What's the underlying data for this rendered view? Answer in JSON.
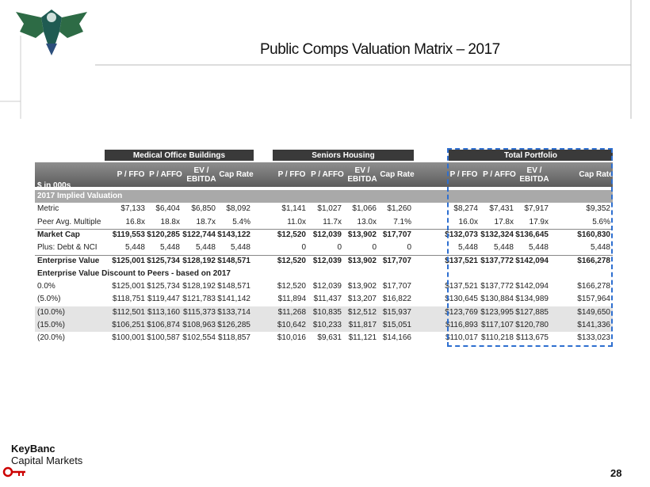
{
  "header": {
    "title": "Public Comps Valuation Matrix – 2017"
  },
  "table": {
    "units": "$ in 000s",
    "groups": [
      "Medical Office Buildings",
      "Seniors Housing",
      "Total Portfolio"
    ],
    "columns": [
      "P / FFO",
      "P / AFFO",
      "EV / EBITDA",
      "Cap Rate"
    ],
    "sections": [
      {
        "title": "2017 Implied Valuation",
        "banner": true,
        "rows": [
          {
            "label": "Metric",
            "cells": [
              "$7,133",
              "$6,404",
              "$6,850",
              "$8,092",
              "$1,141",
              "$1,027",
              "$1,066",
              "$1,260",
              "$8,274",
              "$7,431",
              "$7,917",
              "$9,352"
            ]
          },
          {
            "label": "Peer Avg. Multiple",
            "cells": [
              "16.8x",
              "18.8x",
              "18.7x",
              "5.4%",
              "11.0x",
              "11.7x",
              "13.0x",
              "7.1%",
              "16.0x",
              "17.8x",
              "17.9x",
              "5.6%"
            ]
          },
          {
            "label": "Market Cap",
            "emphasis": true,
            "cells": [
              "$119,553",
              "$120,285",
              "$122,744",
              "$143,122",
              "$12,520",
              "$12,039",
              "$13,902",
              "$17,707",
              "$132,073",
              "$132,324",
              "$136,645",
              "$160,830"
            ]
          },
          {
            "label": "Plus: Debt & NCI",
            "cells": [
              "5,448",
              "5,448",
              "5,448",
              "5,448",
              "0",
              "0",
              "0",
              "0",
              "5,448",
              "5,448",
              "5,448",
              "5,448"
            ]
          },
          {
            "label": "Enterprise Value",
            "emphasis": true,
            "cells": [
              "$125,001",
              "$125,734",
              "$128,192",
              "$148,571",
              "$12,520",
              "$12,039",
              "$13,902",
              "$17,707",
              "$137,521",
              "$137,772",
              "$142,094",
              "$166,278"
            ]
          }
        ]
      },
      {
        "title": "Enterprise Value Discount to Peers - based on 2017",
        "banner": false,
        "rows": [
          {
            "label": "0.0%",
            "cells": [
              "$125,001",
              "$125,734",
              "$128,192",
              "$148,571",
              "$12,520",
              "$12,039",
              "$13,902",
              "$17,707",
              "$137,521",
              "$137,772",
              "$142,094",
              "$166,278"
            ]
          },
          {
            "label": "(5.0%)",
            "cells": [
              "$118,751",
              "$119,447",
              "$121,783",
              "$141,142",
              "$11,894",
              "$11,437",
              "$13,207",
              "$16,822",
              "$130,645",
              "$130,884",
              "$134,989",
              "$157,964"
            ]
          },
          {
            "label": "(10.0%)",
            "shaded": true,
            "cells": [
              "$112,501",
              "$113,160",
              "$115,373",
              "$133,714",
              "$11,268",
              "$10,835",
              "$12,512",
              "$15,937",
              "$123,769",
              "$123,995",
              "$127,885",
              "$149,650"
            ]
          },
          {
            "label": "(15.0%)",
            "shaded": true,
            "cells": [
              "$106,251",
              "$106,874",
              "$108,963",
              "$126,285",
              "$10,642",
              "$10,233",
              "$11,817",
              "$15,051",
              "$116,893",
              "$117,107",
              "$120,780",
              "$141,336"
            ]
          },
          {
            "label": "(20.0%)",
            "cells": [
              "$100,001",
              "$100,587",
              "$102,554",
              "$118,857",
              "$10,016",
              "$9,631",
              "$11,121",
              "$14,166",
              "$110,017",
              "$110,218",
              "$113,675",
              "$133,023"
            ]
          }
        ]
      }
    ]
  },
  "footer": {
    "brand": "KeyBanc",
    "division": "Capital Markets",
    "page": "28"
  }
}
